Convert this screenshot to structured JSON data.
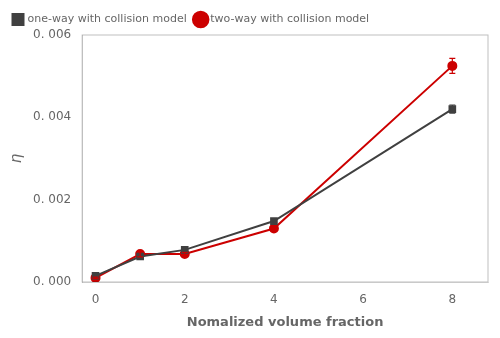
{
  "chart_data": {
    "type": "line",
    "x_label": "Nomalized volume fraction",
    "y_label": "η",
    "x": [
      0.0,
      1.0,
      2.0,
      4.0,
      8.0
    ],
    "series": [
      {
        "name": "one-way with collision model",
        "color": "#404040",
        "marker": "square",
        "values": [
          0.00015,
          0.00062,
          0.00078,
          0.00148,
          0.0042
        ],
        "errors": [
          3e-05,
          5e-05,
          4e-05,
          6e-05,
          0.0001
        ]
      },
      {
        "name": "two-way with collision model",
        "color": "#cc0000",
        "marker": "circle",
        "values": [
          0.0001,
          0.00068,
          0.00068,
          0.0013,
          0.00525
        ],
        "errors": [
          2e-05,
          7e-05,
          4e-05,
          4e-05,
          0.00018
        ]
      }
    ],
    "xlim": [
      -0.3,
      8.8
    ],
    "xticks": [
      0,
      2,
      4,
      6,
      8
    ],
    "ylim": [
      0.0,
      0.006
    ],
    "yticks": [
      {
        "value": 0.0,
        "label": "0. 000"
      },
      {
        "value": 0.002,
        "label": "0. 002"
      },
      {
        "value": 0.004,
        "label": "0. 004"
      },
      {
        "value": 0.006,
        "label": "0. 006"
      }
    ],
    "grid": false,
    "legend": "upper left"
  }
}
